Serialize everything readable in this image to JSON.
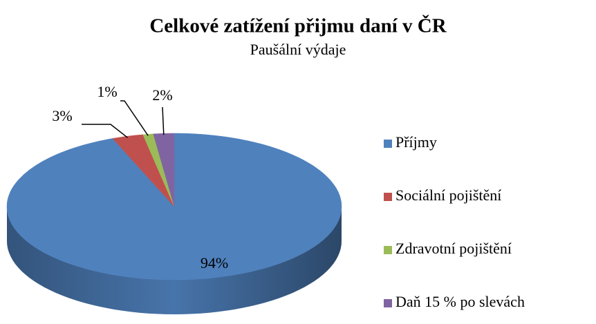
{
  "chart_data": {
    "type": "pie3d",
    "title": "Celkové zatížení přijmu daní v ČR",
    "subtitle": "Paušální výdaje",
    "categories": [
      "Příjmy",
      "Sociální pojištění",
      "Zdravotní pojištění",
      "Daň 15 % po slevách"
    ],
    "values": [
      94,
      3,
      1,
      2
    ],
    "value_labels": [
      "94%",
      "3%",
      "1%",
      "2%"
    ],
    "colors": [
      "#4f81bd",
      "#c0504d",
      "#9bbb59",
      "#8064a2"
    ],
    "legend": "right"
  }
}
